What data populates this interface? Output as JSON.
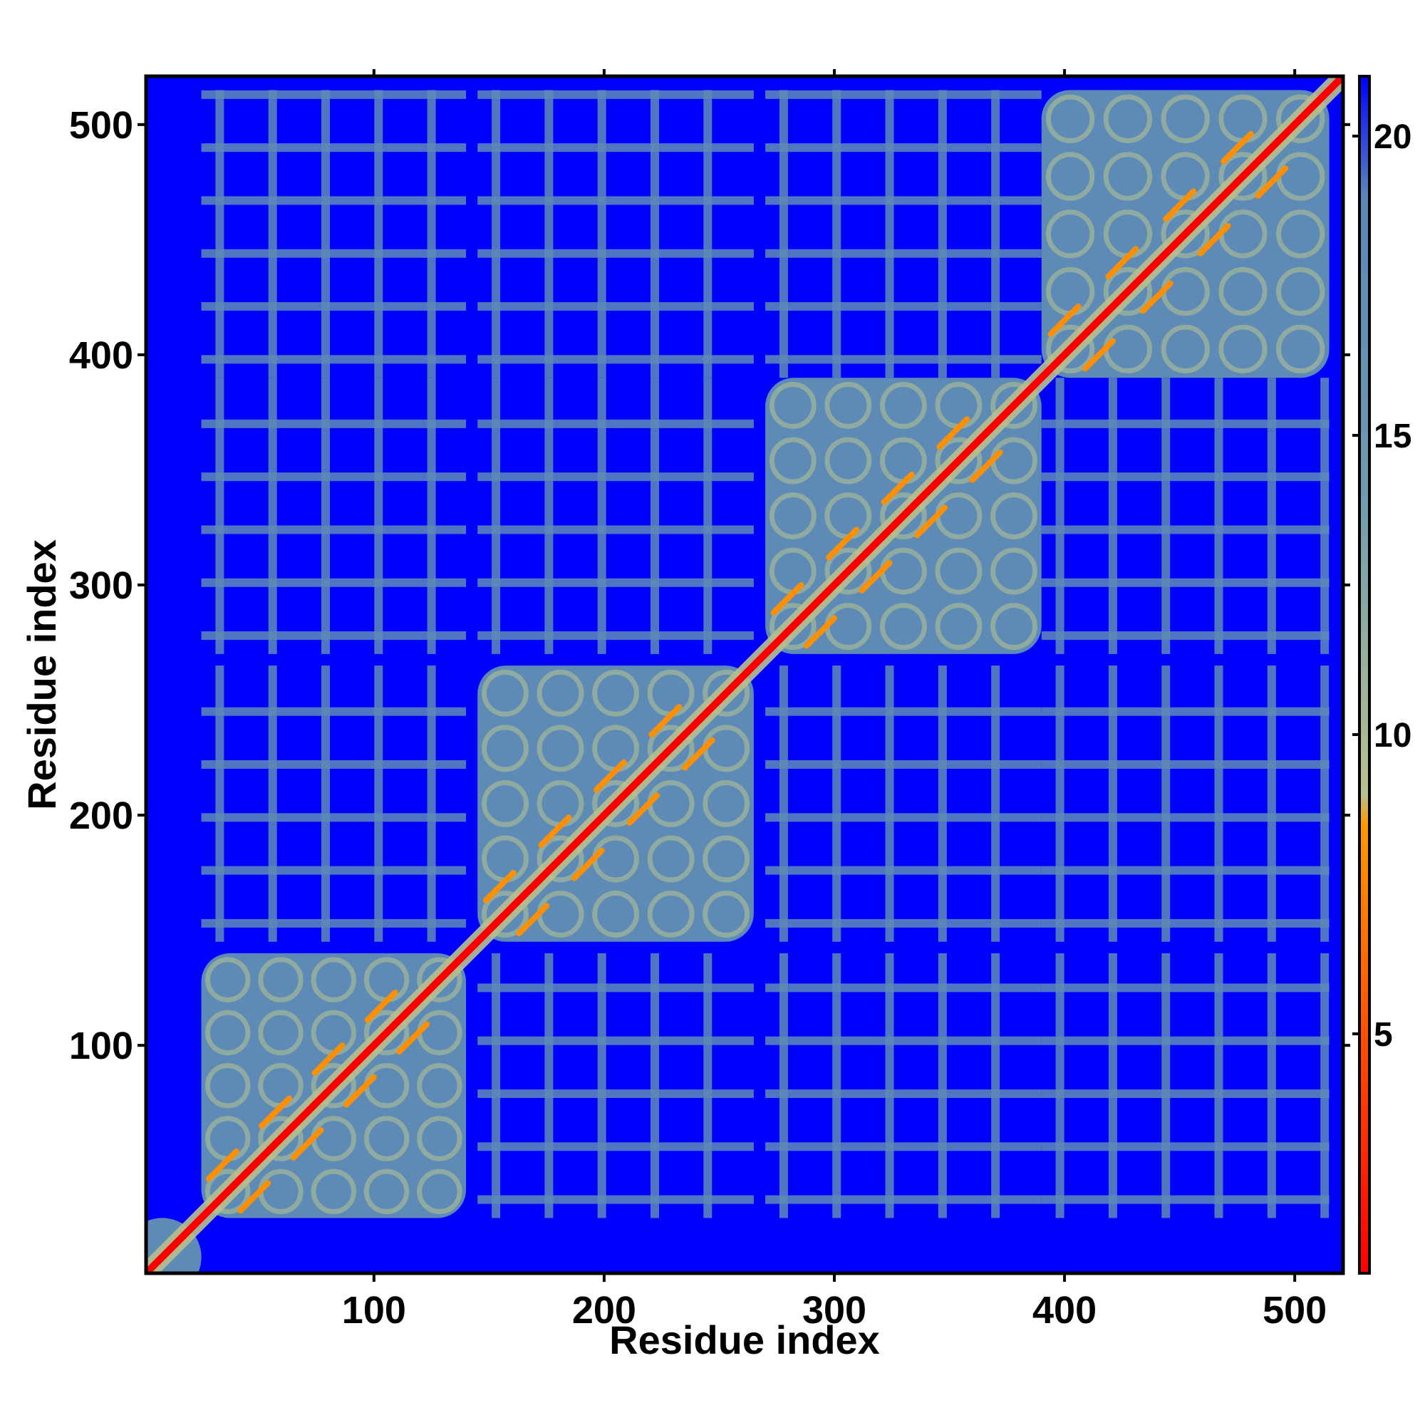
{
  "chart_data": {
    "type": "heatmap",
    "title": "",
    "xlabel": "Residue index",
    "ylabel": "Residue index",
    "xlim": [
      1,
      521
    ],
    "ylim": [
      1,
      521
    ],
    "x_ticks": [
      100,
      200,
      300,
      400,
      500
    ],
    "y_ticks": [
      100,
      200,
      300,
      400,
      500
    ],
    "x_tick_labels": [
      "100",
      "200",
      "300",
      "400",
      "500"
    ],
    "y_tick_labels": [
      "100",
      "200",
      "300",
      "400",
      "500"
    ],
    "colorbar": {
      "range": [
        1,
        21
      ],
      "ticks": [
        5,
        10,
        15,
        20
      ],
      "tick_labels": [
        "5",
        "10",
        "15",
        "20"
      ],
      "stops": [
        {
          "value": 1,
          "color": "#ff0000"
        },
        {
          "value": 5,
          "color": "#ff5000"
        },
        {
          "value": 8.5,
          "color": "#ff9900"
        },
        {
          "value": 9,
          "color": "#b8c08e"
        },
        {
          "value": 14,
          "color": "#6f9bb0"
        },
        {
          "value": 19,
          "color": "#5a86b8"
        },
        {
          "value": 21,
          "color": "#0000ff"
        }
      ]
    },
    "background_value": 21,
    "domains": [
      {
        "start": 25,
        "end": 140
      },
      {
        "start": 145,
        "end": 265
      },
      {
        "start": 270,
        "end": 390
      },
      {
        "start": 390,
        "end": 515
      }
    ],
    "diagonal_value": 1,
    "near_contact_value": 8,
    "domain_fill_value": 18
  }
}
